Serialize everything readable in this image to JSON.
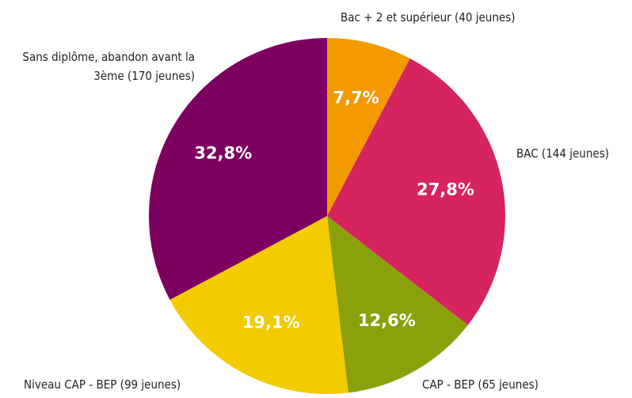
{
  "chart_data": {
    "type": "pie",
    "categories": [
      "Bac + 2 et supérieur (40 jeunes)",
      "BAC (144 jeunes)",
      "CAP - BEP (65 jeunes)",
      "Niveau CAP - BEP (99 jeunes)",
      "Sans diplôme, abandon avant la 3ème (170 jeunes)"
    ],
    "values": [
      7.7,
      27.8,
      12.6,
      19.1,
      32.8
    ],
    "value_labels": [
      "7,7%",
      "27,8%",
      "12,6%",
      "19,1%",
      "32,8%"
    ],
    "colors": [
      "#f29a00",
      "#d6245f",
      "#8aa10c",
      "#f2cb00",
      "#7d0060"
    ]
  }
}
